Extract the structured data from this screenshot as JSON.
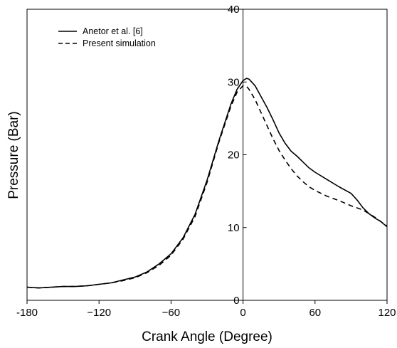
{
  "chart_data": {
    "type": "line",
    "xlabel": "Crank Angle (Degree)",
    "ylabel": "Pressure (Bar)",
    "xlim": [
      -180,
      120
    ],
    "ylim": [
      0,
      40
    ],
    "x_ticks": [
      -180,
      -120,
      -60,
      0,
      60,
      120
    ],
    "y_ticks": [
      0,
      10,
      20,
      30,
      40
    ],
    "x_tick_labels": [
      "-180",
      "−120",
      "−60",
      "0",
      "60",
      "120"
    ],
    "y_tick_labels": [
      "0",
      "10",
      "20",
      "30",
      "40"
    ],
    "legend_placement": "top-left",
    "grid": false,
    "series": [
      {
        "name": "Anetor et al. [6]",
        "style": "solid",
        "color": "#000000",
        "points": [
          [
            -180,
            1.8
          ],
          [
            -170,
            1.7
          ],
          [
            -160,
            1.8
          ],
          [
            -150,
            1.9
          ],
          [
            -140,
            1.9
          ],
          [
            -130,
            2.0
          ],
          [
            -120,
            2.2
          ],
          [
            -110,
            2.4
          ],
          [
            -100,
            2.8
          ],
          [
            -90,
            3.2
          ],
          [
            -80,
            3.9
          ],
          [
            -70,
            5.0
          ],
          [
            -60,
            6.4
          ],
          [
            -50,
            8.6
          ],
          [
            -40,
            11.8
          ],
          [
            -30,
            16.5
          ],
          [
            -20,
            22.0
          ],
          [
            -10,
            27.0
          ],
          [
            -5,
            29.0
          ],
          [
            0,
            30.2
          ],
          [
            3,
            30.5
          ],
          [
            5,
            30.4
          ],
          [
            10,
            29.5
          ],
          [
            15,
            28.0
          ],
          [
            20,
            26.5
          ],
          [
            25,
            24.8
          ],
          [
            30,
            23.0
          ],
          [
            35,
            21.6
          ],
          [
            40,
            20.5
          ],
          [
            45,
            19.8
          ],
          [
            50,
            19.0
          ],
          [
            55,
            18.2
          ],
          [
            60,
            17.6
          ],
          [
            70,
            16.6
          ],
          [
            80,
            15.6
          ],
          [
            90,
            14.7
          ],
          [
            95,
            13.8
          ],
          [
            100,
            12.7
          ],
          [
            105,
            11.9
          ],
          [
            110,
            11.3
          ],
          [
            115,
            10.8
          ],
          [
            120,
            10.1
          ]
        ]
      },
      {
        "name": "Present simulation",
        "style": "dashed",
        "color": "#000000",
        "points": [
          [
            -180,
            1.8
          ],
          [
            -170,
            1.7
          ],
          [
            -160,
            1.8
          ],
          [
            -150,
            1.9
          ],
          [
            -140,
            1.9
          ],
          [
            -130,
            2.0
          ],
          [
            -120,
            2.2
          ],
          [
            -110,
            2.4
          ],
          [
            -100,
            2.7
          ],
          [
            -90,
            3.1
          ],
          [
            -80,
            3.8
          ],
          [
            -70,
            4.8
          ],
          [
            -60,
            6.2
          ],
          [
            -50,
            8.4
          ],
          [
            -40,
            11.5
          ],
          [
            -30,
            16.2
          ],
          [
            -20,
            21.8
          ],
          [
            -10,
            26.7
          ],
          [
            -5,
            28.6
          ],
          [
            0,
            29.5
          ],
          [
            3,
            29.4
          ],
          [
            5,
            29.0
          ],
          [
            10,
            27.6
          ],
          [
            15,
            25.8
          ],
          [
            20,
            24.0
          ],
          [
            25,
            22.2
          ],
          [
            30,
            20.6
          ],
          [
            35,
            19.3
          ],
          [
            40,
            18.1
          ],
          [
            45,
            17.1
          ],
          [
            50,
            16.3
          ],
          [
            55,
            15.6
          ],
          [
            60,
            15.1
          ],
          [
            70,
            14.3
          ],
          [
            80,
            13.7
          ],
          [
            90,
            13.0
          ],
          [
            100,
            12.4
          ],
          [
            110,
            11.4
          ],
          [
            120,
            10.2
          ]
        ]
      }
    ]
  }
}
